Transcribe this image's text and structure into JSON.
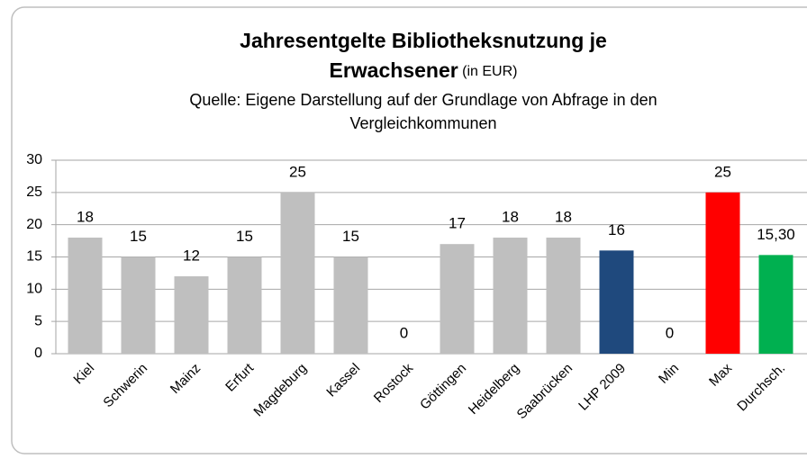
{
  "chart_data": {
    "type": "bar",
    "title": [
      "Jahresentgelte Bibliotheksnutzung je",
      "Erwachsener"
    ],
    "title_note": "(in EUR)",
    "subtitle": [
      "Quelle: Eigene Darstellung auf der Grundlage von Abfrage  in den",
      "Vergleichkommunen"
    ],
    "categories": [
      "Kiel",
      "Schwerin",
      "Mainz",
      "Erfurt",
      "Magdeburg",
      "Kassel",
      "Rostock",
      "Göttingen",
      "Heidelberg",
      "Saabrücken",
      "LHP 2009",
      "Min",
      "Max",
      "Durchsch."
    ],
    "values": [
      18,
      15,
      12,
      15,
      25,
      15,
      0,
      17,
      18,
      18,
      16,
      0,
      25,
      15.3
    ],
    "value_labels": [
      "18",
      "15",
      "12",
      "15",
      "25",
      "15",
      "0",
      "17",
      "18",
      "18",
      "16",
      "0",
      "25",
      "15,30"
    ],
    "colors": [
      "#bfbfbf",
      "#bfbfbf",
      "#bfbfbf",
      "#bfbfbf",
      "#bfbfbf",
      "#bfbfbf",
      "#bfbfbf",
      "#bfbfbf",
      "#bfbfbf",
      "#bfbfbf",
      "#1f497d",
      "#bfbfbf",
      "#ff0000",
      "#00b050"
    ],
    "ylim": [
      0,
      30
    ],
    "yticks": [
      0,
      5,
      10,
      15,
      20,
      25,
      30
    ],
    "grid": true
  }
}
